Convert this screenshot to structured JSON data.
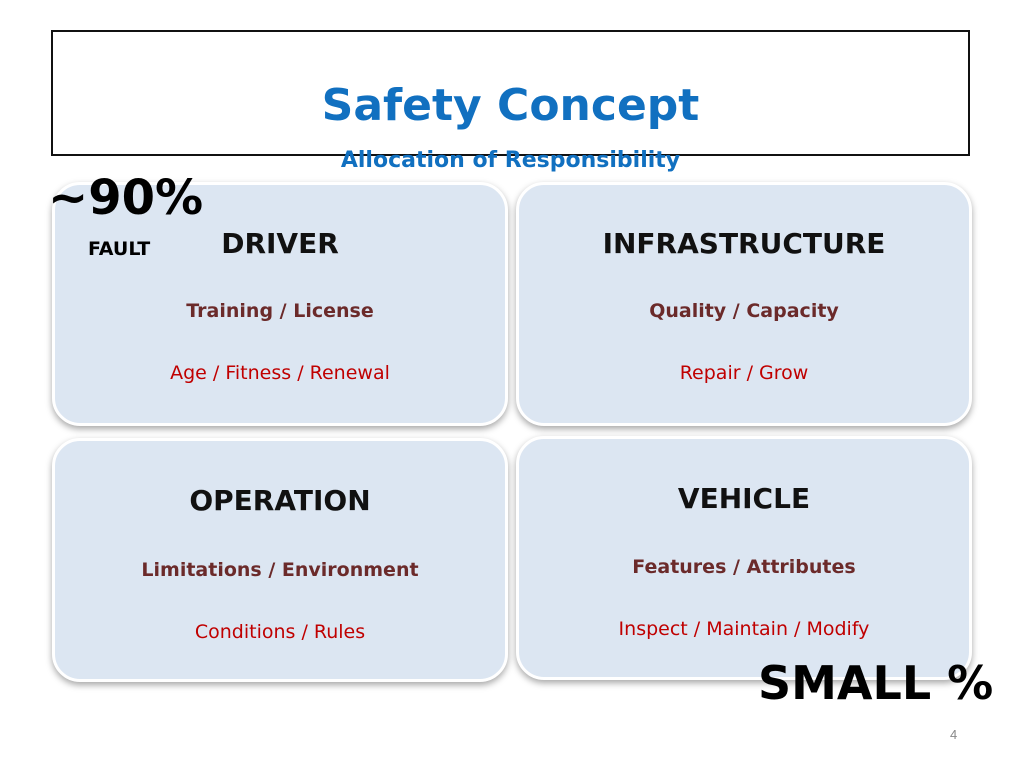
{
  "slide": {
    "title": "Safety Concept",
    "subtitle": "Allocation of Responsibility",
    "page_number": "4"
  },
  "annotations": {
    "driver_percent": "~90%",
    "driver_note": "FAULT",
    "vehicle_percent": "SMALL %"
  },
  "cards": {
    "driver": {
      "title": "DRIVER",
      "line1": "Training / License",
      "line2": "Age / Fitness / Renewal"
    },
    "infrastructure": {
      "title": "INFRASTRUCTURE",
      "line1": "Quality / Capacity",
      "line2": "Repair / Grow"
    },
    "operation": {
      "title": "OPERATION",
      "line1": "Limitations / Environment",
      "line2": "Conditions / Rules"
    },
    "vehicle": {
      "title": "VEHICLE",
      "line1": "Features / Attributes",
      "line2": "Inspect / Maintain / Modify"
    }
  },
  "colors": {
    "title_blue": "#1170c0",
    "card_fill": "#dce6f2",
    "line1_color": "#6b2a2a",
    "line2_color": "#c00000"
  }
}
